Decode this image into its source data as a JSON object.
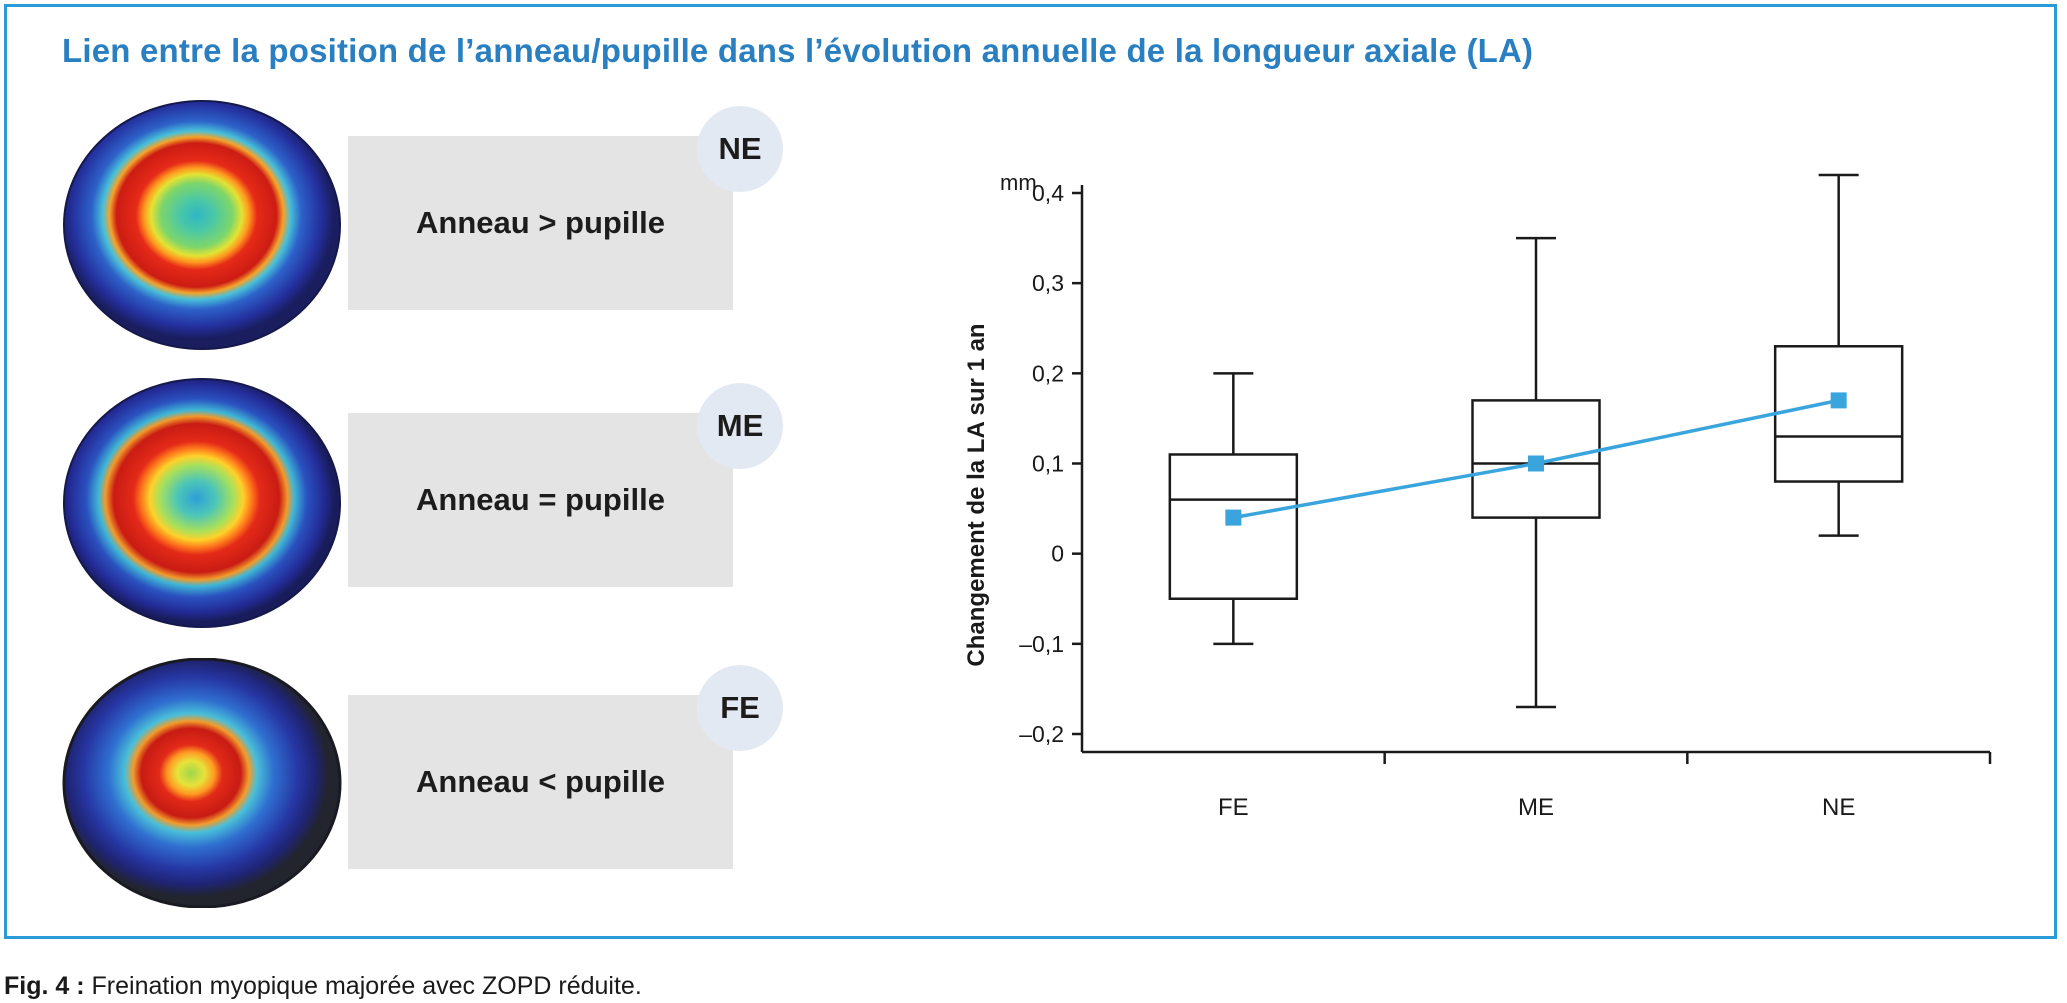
{
  "title": "Lien entre la position de l’anneau/pupille dans l’évolution annuelle de la longueur axiale (LA)",
  "panels": [
    {
      "badge": "NE",
      "label": "Anneau > pupille"
    },
    {
      "badge": "ME",
      "label": "Anneau = pupille"
    },
    {
      "badge": "FE",
      "label": "Anneau < pupille"
    }
  ],
  "caption": {
    "prefix": "Fig. 4 :",
    "text": " Freination myopique majorée avec ZOPD réduite."
  },
  "chart_data": {
    "type": "box",
    "categories": [
      "FE",
      "ME",
      "NE"
    ],
    "ylabel": "Changement de la LA sur 1 an",
    "yunit": "mm",
    "ylim": [
      -0.2,
      0.4
    ],
    "yticks": [
      -0.2,
      -0.1,
      0,
      0.1,
      0.2,
      0.3,
      0.4
    ],
    "ytick_labels": [
      "–0,2",
      "–0,1",
      "0",
      "0,1",
      "0,2",
      "0,3",
      "0,4"
    ],
    "boxes": [
      {
        "category": "FE",
        "min": -0.1,
        "q1": -0.05,
        "median": 0.06,
        "q3": 0.11,
        "max": 0.2
      },
      {
        "category": "ME",
        "min": -0.17,
        "q1": 0.04,
        "median": 0.1,
        "q3": 0.17,
        "max": 0.35
      },
      {
        "category": "NE",
        "min": 0.02,
        "q1": 0.08,
        "median": 0.13,
        "q3": 0.23,
        "max": 0.42
      }
    ],
    "mean_line": {
      "values": [
        0.04,
        0.1,
        0.17
      ],
      "color": "#3aa5dd"
    },
    "grid": false
  }
}
